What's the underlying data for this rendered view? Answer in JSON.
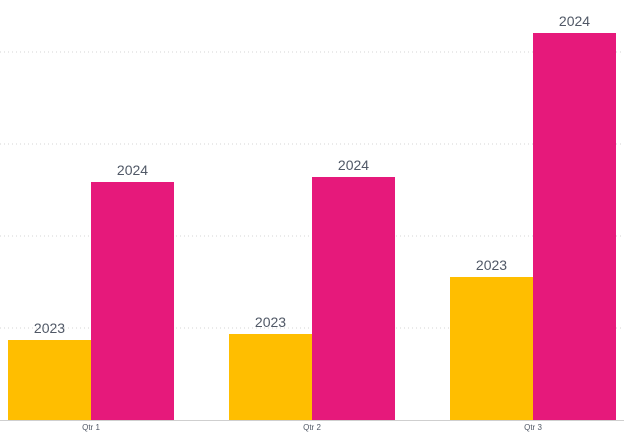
{
  "chart_data": {
    "type": "bar",
    "categories": [
      "Qtr 1",
      "Qtr 2",
      "Qtr 3"
    ],
    "series": [
      {
        "name": "2023",
        "values": [
          80,
          86,
          143
        ]
      },
      {
        "name": "2024",
        "values": [
          238,
          243,
          387
        ]
      }
    ],
    "data_labels": [
      [
        "2023",
        "2023",
        "2023"
      ],
      [
        "2024",
        "2024",
        "2024"
      ]
    ],
    "ylim": [
      0,
      420
    ],
    "gridlines": [
      92,
      184,
      276,
      368
    ],
    "grid": true,
    "legend": "none",
    "colors": [
      "#FFBE00",
      "#E6197B"
    ]
  }
}
